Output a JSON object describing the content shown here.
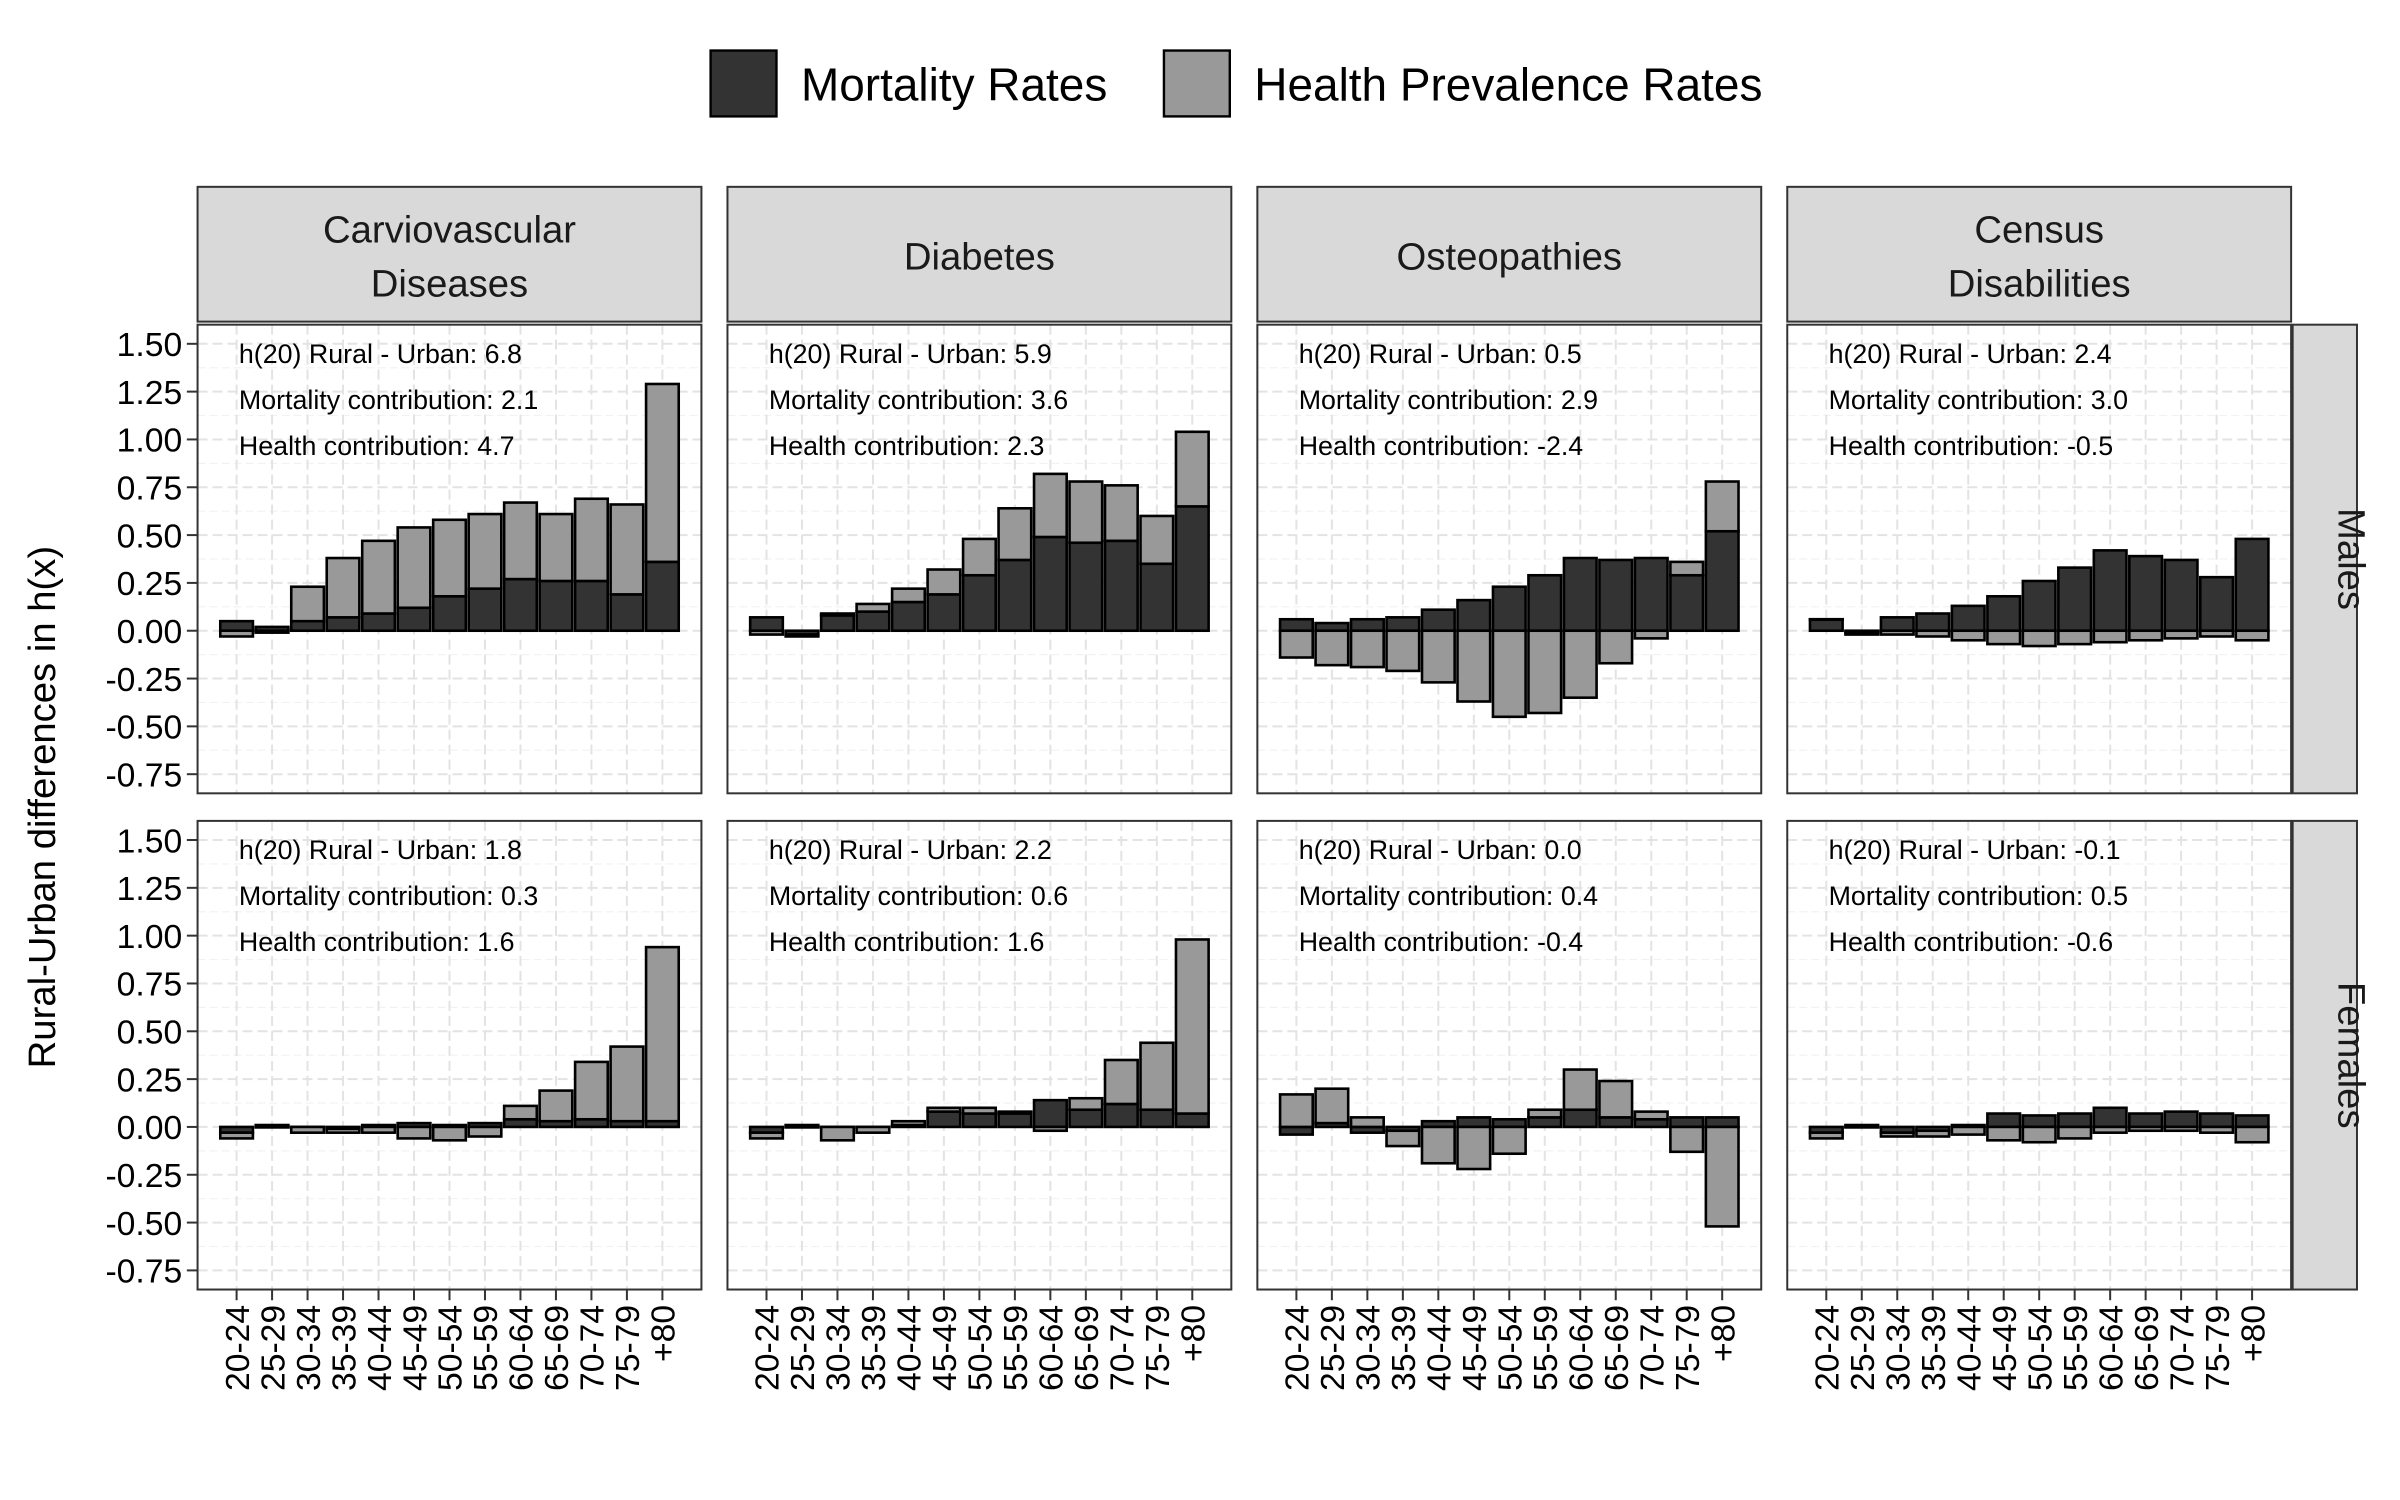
{
  "chart_data": {
    "type": "bar",
    "stacked": true,
    "ylabel": "Rural-Urban differences in h(x)",
    "ylim": [
      -0.85,
      1.6
    ],
    "yticks": [
      -0.75,
      -0.5,
      -0.25,
      0,
      0.25,
      0.5,
      0.75,
      1,
      1.25,
      1.5
    ],
    "ytick_labels": [
      "-0.75",
      "-0.50",
      "-0.25",
      "0.00",
      "0.25",
      "0.50",
      "0.75",
      "1.00",
      "1.25",
      "1.50"
    ],
    "categories": [
      "20-24",
      "25-29",
      "30-34",
      "35-39",
      "40-44",
      "45-49",
      "50-54",
      "55-59",
      "60-64",
      "65-69",
      "70-74",
      "75-79",
      "+80"
    ],
    "grid": true,
    "legend": {
      "position": "top",
      "items": [
        {
          "name": "Mortality Rates",
          "color": "#333333"
        },
        {
          "name": "Health Prevalence Rates",
          "color": "#999999"
        }
      ]
    },
    "columns": [
      "Carviovascular\nDiseases",
      "Diabetes",
      "Osteopathies",
      "Census\nDisabilities"
    ],
    "rows": [
      "Males",
      "Females"
    ],
    "panels": [
      {
        "column": 0,
        "row": 0,
        "annotation": [
          "h(20) Rural - Urban:  6.8",
          "Mortality contribution: 2.1",
          "Health contribution:  4.7"
        ],
        "series": [
          {
            "name": "Mortality Rates",
            "values": [
              0.05,
              0.02,
              0.05,
              0.07,
              0.09,
              0.12,
              0.18,
              0.22,
              0.27,
              0.26,
              0.26,
              0.19,
              0.36
            ]
          },
          {
            "name": "Health Prevalence Rates",
            "values": [
              -0.03,
              -0.01,
              0.18,
              0.31,
              0.38,
              0.42,
              0.4,
              0.39,
              0.4,
              0.35,
              0.43,
              0.47,
              0.93
            ]
          }
        ]
      },
      {
        "column": 1,
        "row": 0,
        "annotation": [
          "h(20) Rural - Urban:  5.9",
          "Mortality contribution: 3.6",
          "Health contribution:  2.3"
        ],
        "series": [
          {
            "name": "Mortality Rates",
            "values": [
              0.07,
              -0.02,
              0.08,
              0.1,
              0.15,
              0.19,
              0.29,
              0.37,
              0.49,
              0.46,
              0.47,
              0.35,
              0.65
            ]
          },
          {
            "name": "Health Prevalence Rates",
            "values": [
              -0.02,
              -0.01,
              0.01,
              0.04,
              0.07,
              0.13,
              0.19,
              0.27,
              0.33,
              0.32,
              0.29,
              0.25,
              0.39
            ]
          }
        ]
      },
      {
        "column": 2,
        "row": 0,
        "annotation": [
          "h(20) Rural - Urban:  0.5",
          "Mortality contribution: 2.9",
          "Health contribution: -2.4"
        ],
        "series": [
          {
            "name": "Mortality Rates",
            "values": [
              0.06,
              0.04,
              0.06,
              0.07,
              0.11,
              0.16,
              0.23,
              0.29,
              0.38,
              0.37,
              0.38,
              0.29,
              0.52
            ]
          },
          {
            "name": "Health Prevalence Rates",
            "values": [
              -0.14,
              -0.18,
              -0.19,
              -0.21,
              -0.27,
              -0.37,
              -0.45,
              -0.43,
              -0.35,
              -0.17,
              -0.04,
              0.07,
              0.26
            ]
          }
        ]
      },
      {
        "column": 3,
        "row": 0,
        "annotation": [
          "h(20) Rural - Urban:  2.4",
          "Mortality contribution: 3.0",
          "Health contribution: -0.5"
        ],
        "series": [
          {
            "name": "Mortality Rates",
            "values": [
              0.06,
              -0.01,
              0.07,
              0.09,
              0.13,
              0.18,
              0.26,
              0.33,
              0.42,
              0.39,
              0.37,
              0.28,
              0.48
            ]
          },
          {
            "name": "Health Prevalence Rates",
            "values": [
              0.0,
              -0.01,
              -0.02,
              -0.03,
              -0.05,
              -0.07,
              -0.08,
              -0.07,
              -0.06,
              -0.05,
              -0.04,
              -0.03,
              -0.05
            ]
          }
        ]
      },
      {
        "column": 0,
        "row": 1,
        "annotation": [
          "h(20) Rural - Urban:  1.8",
          "Mortality contribution:  0.3",
          "Health contribution:  1.6"
        ],
        "series": [
          {
            "name": "Mortality Rates",
            "values": [
              -0.03,
              0.0,
              0.0,
              -0.01,
              0.01,
              0.02,
              0.01,
              0.02,
              0.04,
              0.03,
              0.04,
              0.03,
              0.03
            ]
          },
          {
            "name": "Health Prevalence Rates",
            "values": [
              -0.03,
              0.01,
              -0.03,
              -0.02,
              -0.03,
              -0.06,
              -0.07,
              -0.05,
              0.07,
              0.16,
              0.3,
              0.39,
              0.91
            ]
          }
        ]
      },
      {
        "column": 1,
        "row": 1,
        "annotation": [
          "h(20) Rural - Urban:  2.2",
          "Mortality contribution: 0.6",
          "Health contribution:  1.6"
        ],
        "series": [
          {
            "name": "Mortality Rates",
            "values": [
              -0.03,
              0.0,
              0.0,
              0.0,
              0.01,
              0.08,
              0.07,
              0.07,
              0.14,
              0.09,
              0.12,
              0.09,
              0.07
            ]
          },
          {
            "name": "Health Prevalence Rates",
            "values": [
              -0.03,
              0.01,
              -0.07,
              -0.03,
              0.02,
              0.02,
              0.03,
              0.01,
              -0.02,
              0.06,
              0.23,
              0.35,
              0.91
            ]
          }
        ]
      },
      {
        "column": 2,
        "row": 1,
        "annotation": [
          "h(20) Rural - Urban:  0.0",
          "Mortality contribution: 0.4",
          "Health contribution: -0.4"
        ],
        "series": [
          {
            "name": "Mortality Rates",
            "values": [
              -0.04,
              0.02,
              -0.03,
              -0.02,
              0.03,
              0.05,
              0.04,
              0.05,
              0.09,
              0.05,
              0.04,
              0.05,
              0.05
            ]
          },
          {
            "name": "Health Prevalence Rates",
            "values": [
              0.17,
              0.18,
              0.05,
              -0.08,
              -0.19,
              -0.22,
              -0.14,
              0.04,
              0.21,
              0.19,
              0.04,
              -0.13,
              -0.52
            ]
          }
        ]
      },
      {
        "column": 3,
        "row": 1,
        "annotation": [
          "h(20) Rural - Urban: -0.1",
          "Mortality contribution: 0.5",
          "Health contribution: -0.6"
        ],
        "series": [
          {
            "name": "Mortality Rates",
            "values": [
              -0.03,
              0.0,
              -0.03,
              -0.02,
              0.01,
              0.07,
              0.06,
              0.07,
              0.1,
              0.07,
              0.08,
              0.07,
              0.06
            ]
          },
          {
            "name": "Health Prevalence Rates",
            "values": [
              -0.03,
              0.01,
              -0.02,
              -0.03,
              -0.04,
              -0.07,
              -0.08,
              -0.06,
              -0.03,
              -0.02,
              -0.02,
              -0.03,
              -0.08
            ]
          }
        ]
      }
    ]
  }
}
